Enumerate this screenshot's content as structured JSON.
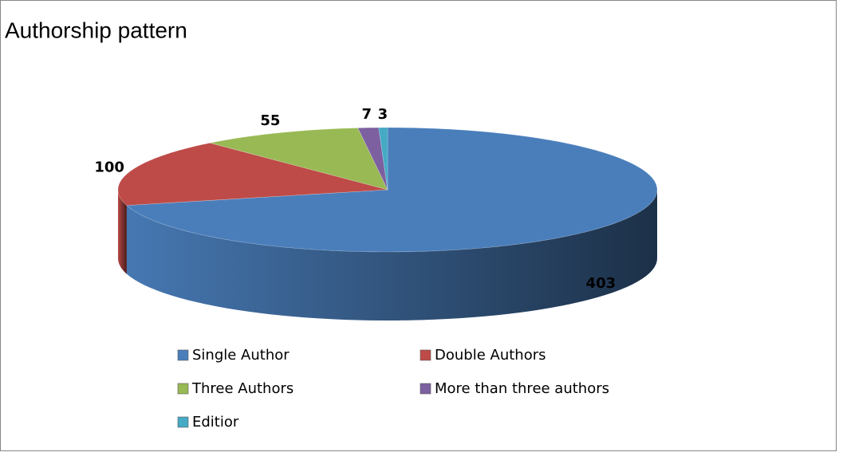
{
  "chart_data": {
    "type": "pie3d",
    "title": "Authorship pattern",
    "categories": [
      "Single Author",
      "Double Authors",
      "Three Authors",
      "More than three authors",
      "Editior"
    ],
    "values": [
      403,
      100,
      55,
      7,
      3
    ],
    "colors": [
      "#4a7ebb",
      "#be4b48",
      "#98b954",
      "#7d60a0",
      "#46aac5"
    ],
    "legend": "bottom"
  }
}
